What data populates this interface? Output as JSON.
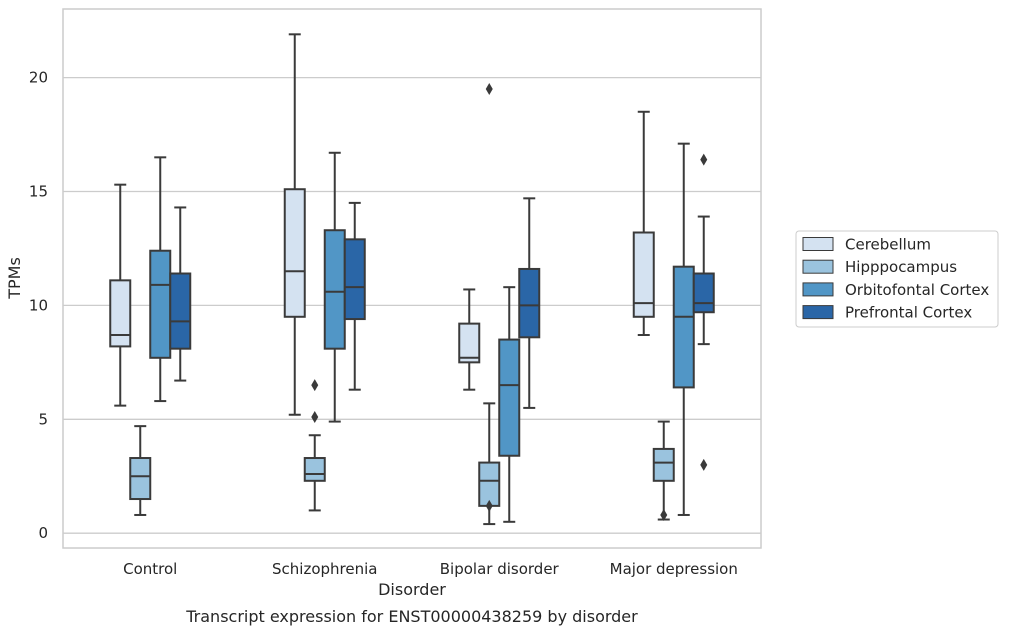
{
  "chart_data": {
    "type": "boxplot",
    "title": "",
    "caption": "Transcript expression for ENST00000438259 by disorder",
    "xlabel": "Disorder",
    "ylabel": "TPMs",
    "ylim": [
      -0.6,
      23.0
    ],
    "yticks": [
      0,
      5,
      10,
      15,
      20
    ],
    "grid": "horizontal",
    "legend_position": "right",
    "categories": [
      "Control",
      "Schizophrenia",
      "Bipolar disorder",
      "Major depression"
    ],
    "series": [
      {
        "name": "Cerebellum",
        "color": "#d4e2f1",
        "boxes": [
          {
            "whisker_low": 5.6,
            "q1": 8.2,
            "median": 8.7,
            "q3": 11.1,
            "whisker_high": 15.3,
            "outliers": []
          },
          {
            "whisker_low": 5.2,
            "q1": 9.5,
            "median": 11.5,
            "q3": 15.1,
            "whisker_high": 21.9,
            "outliers": []
          },
          {
            "whisker_low": 6.3,
            "q1": 7.5,
            "median": 7.7,
            "q3": 9.2,
            "whisker_high": 10.7,
            "outliers": []
          },
          {
            "whisker_low": 8.7,
            "q1": 9.5,
            "median": 10.1,
            "q3": 13.2,
            "whisker_high": 18.5,
            "outliers": []
          }
        ]
      },
      {
        "name": "Hipppocampus",
        "color": "#9ac3de",
        "boxes": [
          {
            "whisker_low": 0.8,
            "q1": 1.5,
            "median": 2.5,
            "q3": 3.3,
            "whisker_high": 4.7,
            "outliers": []
          },
          {
            "whisker_low": 1.0,
            "q1": 2.3,
            "median": 2.6,
            "q3": 3.3,
            "whisker_high": 4.3,
            "outliers": [
              5.1,
              6.5
            ]
          },
          {
            "whisker_low": 0.4,
            "q1": 1.2,
            "median": 2.3,
            "q3": 3.1,
            "whisker_high": 5.7,
            "outliers": [
              1.2,
              19.5
            ]
          },
          {
            "whisker_low": 0.6,
            "q1": 2.3,
            "median": 3.1,
            "q3": 3.7,
            "whisker_high": 4.9,
            "outliers": [
              0.8
            ]
          }
        ]
      },
      {
        "name": "Orbitofontal Cortex",
        "color": "#5196c6",
        "boxes": [
          {
            "whisker_low": 5.8,
            "q1": 7.7,
            "median": 10.9,
            "q3": 12.4,
            "whisker_high": 16.5,
            "outliers": []
          },
          {
            "whisker_low": 4.9,
            "q1": 8.1,
            "median": 10.6,
            "q3": 13.3,
            "whisker_high": 16.7,
            "outliers": []
          },
          {
            "whisker_low": 0.5,
            "q1": 3.4,
            "median": 6.5,
            "q3": 8.5,
            "whisker_high": 10.8,
            "outliers": []
          },
          {
            "whisker_low": 0.8,
            "q1": 6.4,
            "median": 9.5,
            "q3": 11.7,
            "whisker_high": 17.1,
            "outliers": []
          }
        ]
      },
      {
        "name": "Prefrontal Cortex",
        "color": "#2a66a7",
        "boxes": [
          {
            "whisker_low": 6.7,
            "q1": 8.1,
            "median": 9.3,
            "q3": 11.4,
            "whisker_high": 14.3,
            "outliers": []
          },
          {
            "whisker_low": 6.3,
            "q1": 9.4,
            "median": 10.8,
            "q3": 12.9,
            "whisker_high": 14.5,
            "outliers": []
          },
          {
            "whisker_low": 5.5,
            "q1": 8.6,
            "median": 10.0,
            "q3": 11.6,
            "whisker_high": 14.7,
            "outliers": []
          },
          {
            "whisker_low": 8.3,
            "q1": 9.7,
            "median": 10.1,
            "q3": 11.4,
            "whisker_high": 13.9,
            "outliers": [
              3.0,
              16.4
            ]
          }
        ]
      }
    ]
  }
}
